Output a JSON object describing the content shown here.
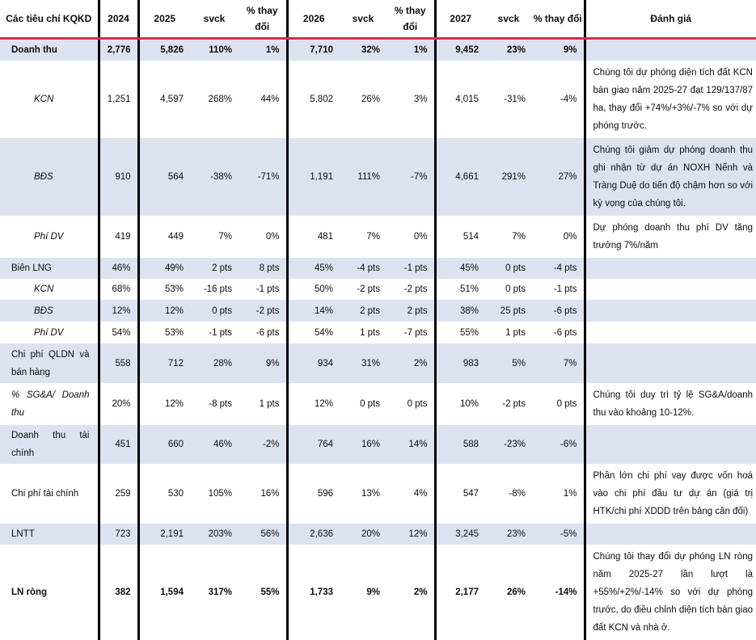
{
  "colors": {
    "accent_red": "#e8254d",
    "row_shade": "#dce3f0"
  },
  "table": {
    "header": [
      "Các tiêu chí KQKD",
      "2024",
      "2025",
      "svck",
      "% thay đổi",
      "2026",
      "svck",
      "% thay đổi",
      "2027",
      "svck",
      "% thay đổi",
      "Đánh giá"
    ],
    "rows": [
      {
        "label": "Doanh thu",
        "bold": true,
        "italic": false,
        "indent": false,
        "shaded": true,
        "values": [
          "2,776",
          "5,826",
          "110%",
          "1%",
          "7,710",
          "32%",
          "1%",
          "9,452",
          "23%",
          "9%"
        ],
        "note": ""
      },
      {
        "label": "KCN",
        "bold": false,
        "italic": true,
        "indent": true,
        "shaded": false,
        "values": [
          "1,251",
          "4,597",
          "268%",
          "44%",
          "5,802",
          "26%",
          "3%",
          "4,015",
          "-31%",
          "-4%"
        ],
        "note": "Chúng tôi dự phóng diện tích đất KCN bàn giao năm 2025-27 đạt 129/137/87 ha, thay đổi +74%/+3%/-7% so với dự phóng trước."
      },
      {
        "label": "BĐS",
        "bold": false,
        "italic": true,
        "indent": true,
        "shaded": true,
        "values": [
          "910",
          "564",
          "-38%",
          "-71%",
          "1,191",
          "111%",
          "-7%",
          "4,661",
          "291%",
          "27%"
        ],
        "note": "Chúng tôi giảm dự phóng doanh thu ghi nhận từ dự án NOXH Nếnh và Tràng Duệ do tiến độ chậm hơn so với kỳ vọng của chúng tôi."
      },
      {
        "label": "Phí DV",
        "bold": false,
        "italic": true,
        "indent": true,
        "shaded": false,
        "values": [
          "419",
          "449",
          "7%",
          "0%",
          "481",
          "7%",
          "0%",
          "514",
          "7%",
          "0%"
        ],
        "note": "Dự phóng doanh thu phí DV tăng trưởng 7%/năm"
      },
      {
        "label": "Biên LNG",
        "bold": false,
        "italic": false,
        "indent": false,
        "shaded": true,
        "values": [
          "46%",
          "49%",
          "2 pts",
          "8 pts",
          "45%",
          "-4 pts",
          "-1 pts",
          "45%",
          "0 pts",
          "-4 pts"
        ],
        "note": ""
      },
      {
        "label": "KCN",
        "bold": false,
        "italic": true,
        "indent": true,
        "shaded": false,
        "values": [
          "68%",
          "53%",
          "-16 pts",
          "-1 pts",
          "50%",
          "-2 pts",
          "-2 pts",
          "51%",
          "0 pts",
          "-1 pts"
        ],
        "note": ""
      },
      {
        "label": "BĐS",
        "bold": false,
        "italic": true,
        "indent": true,
        "shaded": true,
        "values": [
          "12%",
          "12%",
          "0 pts",
          "-2 pts",
          "14%",
          "2 pts",
          "2 pts",
          "38%",
          "25 pts",
          "-6 pts"
        ],
        "note": ""
      },
      {
        "label": "Phí DV",
        "bold": false,
        "italic": true,
        "indent": true,
        "shaded": false,
        "values": [
          "54%",
          "53%",
          "-1 pts",
          "-6 pts",
          "54%",
          "1 pts",
          "-7 pts",
          "55%",
          "1 pts",
          "-6 pts"
        ],
        "note": ""
      },
      {
        "label": "Chi phí QLDN và bán hàng",
        "bold": false,
        "italic": false,
        "indent": false,
        "shaded": true,
        "values": [
          "558",
          "712",
          "28%",
          "9%",
          "934",
          "31%",
          "2%",
          "983",
          "5%",
          "7%"
        ],
        "note": ""
      },
      {
        "label": "% SG&A/ Doanh thu",
        "bold": false,
        "italic": true,
        "indent": false,
        "shaded": false,
        "values": [
          "20%",
          "12%",
          "-8 pts",
          "1 pts",
          "12%",
          "0 pts",
          "0 pts",
          "10%",
          "-2 pts",
          "0 pts"
        ],
        "note": "Chúng tôi duy trì tỷ lệ SG&A/doanh thu vào khoảng 10-12%."
      },
      {
        "label": "Doanh thu tài chính",
        "bold": false,
        "italic": false,
        "indent": false,
        "shaded": true,
        "values": [
          "451",
          "660",
          "46%",
          "-2%",
          "764",
          "16%",
          "14%",
          "588",
          "-23%",
          "-6%"
        ],
        "note": ""
      },
      {
        "label": "Chi phí tài chính",
        "bold": false,
        "italic": false,
        "indent": false,
        "shaded": false,
        "values": [
          "259",
          "530",
          "105%",
          "16%",
          "596",
          "13%",
          "4%",
          "547",
          "-8%",
          "1%"
        ],
        "note": "Phần lớn chi phí vay được vốn hoá vào chi phí đầu tư dự án (giá trị HTK/chi phí XDDD trên bảng cân đối)"
      },
      {
        "label": "LNTT",
        "bold": false,
        "italic": false,
        "indent": false,
        "shaded": true,
        "values": [
          "723",
          "2,191",
          "203%",
          "56%",
          "2,636",
          "20%",
          "12%",
          "3,245",
          "23%",
          "-5%"
        ],
        "note": ""
      },
      {
        "label": "LN ròng",
        "bold": true,
        "italic": false,
        "indent": false,
        "shaded": false,
        "values": [
          "382",
          "1,594",
          "317%",
          "55%",
          "1,733",
          "9%",
          "2%",
          "2,177",
          "26%",
          "-14%"
        ],
        "note": "Chúng tôi thay đổi dự phóng LN ròng năm 2025-27 lần lượt là +55%/+2%/-14% so với dự phóng trước, do điều chỉnh diện tích bàn giao đất KCN và nhà ở."
      }
    ]
  }
}
